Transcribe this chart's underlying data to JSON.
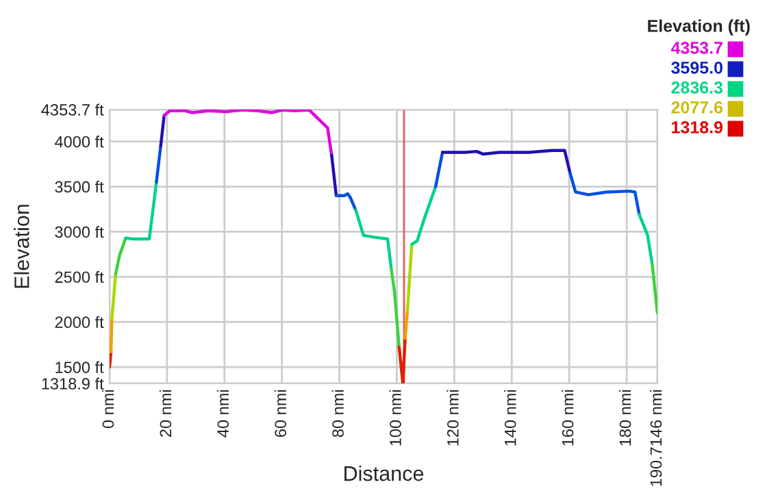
{
  "chart_data": {
    "type": "line",
    "xlabel": "Distance",
    "ylabel": "Elevation",
    "clabel": "Elevation (ft)",
    "series": [
      {
        "color": "#e02000",
        "x": [
          0,
          0.5
        ],
        "values": [
          1500,
          1670
        ]
      },
      {
        "color": "#f0a000",
        "x": [
          0.5,
          0.8
        ],
        "values": [
          1670,
          2030
        ]
      },
      {
        "color": "#a8d800",
        "x": [
          0.8,
          2.1
        ],
        "values": [
          2030,
          2530
        ]
      },
      {
        "color": "#40d040",
        "x": [
          2.1,
          3.5,
          5.6
        ],
        "values": [
          2530,
          2740,
          2930
        ]
      },
      {
        "color": "#00d090",
        "x": [
          5.6,
          8,
          10.3,
          12.4,
          13.8,
          15.1,
          16.3
        ],
        "values": [
          2930,
          2920,
          2920,
          2920,
          2920,
          3240,
          3550
        ]
      },
      {
        "color": "#0050e0",
        "x": [
          16.3,
          17.8
        ],
        "values": [
          3550,
          3950
        ]
      },
      {
        "color": "#2010b0",
        "x": [
          17.8,
          19.0
        ],
        "values": [
          3950,
          4290
        ]
      },
      {
        "color": "#e000e0",
        "x": [
          19.0,
          21,
          26.3,
          28.7,
          34.3,
          40.6,
          46.2,
          51.7,
          56.5,
          60.3,
          64.3,
          69,
          69.8,
          75.9,
          77.3
        ],
        "values": [
          4290,
          4340,
          4340,
          4320,
          4340,
          4330,
          4350,
          4340,
          4320,
          4350,
          4340,
          4350,
          4340,
          4150,
          3850
        ]
      },
      {
        "color": "#2010b0",
        "x": [
          77.3,
          78.9
        ],
        "values": [
          3850,
          3400
        ]
      },
      {
        "color": "#0050e0",
        "x": [
          78.9,
          81.7,
          82.9,
          83.8,
          85.7
        ],
        "values": [
          3400,
          3400,
          3420,
          3380,
          3240
        ]
      },
      {
        "color": "#00d090",
        "x": [
          85.7,
          88.4,
          92.1,
          96.8,
          98.1
        ],
        "values": [
          3240,
          2960,
          2940,
          2920,
          2580
        ]
      },
      {
        "color": "#40d040",
        "x": [
          98.1,
          99.2,
          100.8
        ],
        "values": [
          2580,
          2330,
          1720
        ]
      },
      {
        "color": "#e02000",
        "x": [
          100.8,
          102.1,
          102.9
        ],
        "values": [
          1720,
          1320,
          1820
        ]
      },
      {
        "color": "#f0a000",
        "x": [
          102.9,
          103.7
        ],
        "values": [
          1820,
          2130
        ]
      },
      {
        "color": "#a8d800",
        "x": [
          103.7,
          105.2
        ],
        "values": [
          2130,
          2860
        ]
      },
      {
        "color": "#00d090",
        "x": [
          105.2,
          107.1,
          109.5,
          113.5
        ],
        "values": [
          2860,
          2900,
          3140,
          3500
        ]
      },
      {
        "color": "#0050e0",
        "x": [
          113.5,
          115.9
        ],
        "values": [
          3500,
          3880
        ]
      },
      {
        "color": "#2010b0",
        "x": [
          115.9,
          119.0,
          123.8,
          127.8,
          130.1,
          135.7,
          146.0,
          154.0,
          158.4,
          160.3
        ],
        "values": [
          3880,
          3880,
          3880,
          3890,
          3860,
          3880,
          3880,
          3900,
          3900,
          3650
        ]
      },
      {
        "color": "#0050e0",
        "x": [
          160.3,
          162.2,
          166.7,
          173.0,
          181.0,
          182.9,
          184.4
        ],
        "values": [
          3650,
          3440,
          3410,
          3440,
          3450,
          3440,
          3190
        ]
      },
      {
        "color": "#00d090",
        "x": [
          184.4,
          187.3,
          188.9
        ],
        "values": [
          3190,
          2960,
          2640
        ]
      },
      {
        "color": "#40d040",
        "x": [
          188.9,
          190.7
        ],
        "values": [
          2640,
          2100
        ]
      }
    ],
    "clim": [
      1318.9,
      4353.7
    ],
    "cticks": [
      {
        "value": 4353.7,
        "label": "4353.7"
      },
      {
        "value": 3595.0,
        "label": "3595.0"
      },
      {
        "value": 2836.3,
        "label": "2836.3"
      },
      {
        "value": 2077.6,
        "label": "2077.6"
      },
      {
        "value": 1318.9,
        "label": "1318.9"
      }
    ],
    "xlim": [
      0,
      190.7146
    ],
    "xticks": [
      {
        "value": 0,
        "label": "0 nmi"
      },
      {
        "value": 20,
        "label": "20 nmi"
      },
      {
        "value": 40,
        "label": "40 nmi"
      },
      {
        "value": 60,
        "label": "60 nmi"
      },
      {
        "value": 80,
        "label": "80 nmi"
      },
      {
        "value": 100,
        "label": "100 nmi"
      },
      {
        "value": 120,
        "label": "120 nmi"
      },
      {
        "value": 140,
        "label": "140 nmi"
      },
      {
        "value": 160,
        "label": "160 nmi"
      },
      {
        "value": 180,
        "label": "180 nmi"
      },
      {
        "value": 190.7146,
        "label": "190.7146 nmi"
      }
    ],
    "ylim": [
      1318.9,
      4353.7
    ],
    "yticks": [
      {
        "value": 1318.9,
        "label": "1318.9 ft"
      },
      {
        "value": 1500,
        "label": "1500 ft"
      },
      {
        "value": 2000,
        "label": "2000 ft"
      },
      {
        "value": 2500,
        "label": "2500 ft"
      },
      {
        "value": 3000,
        "label": "3000 ft"
      },
      {
        "value": 3500,
        "label": "3500 ft"
      },
      {
        "value": 4000,
        "label": "4000 ft"
      },
      {
        "value": 4353.7,
        "label": "4353.7 ft"
      }
    ],
    "ref_lines": [
      {
        "axis": "x",
        "value": 102.5,
        "color": "#e06050"
      }
    ],
    "grid": true
  }
}
